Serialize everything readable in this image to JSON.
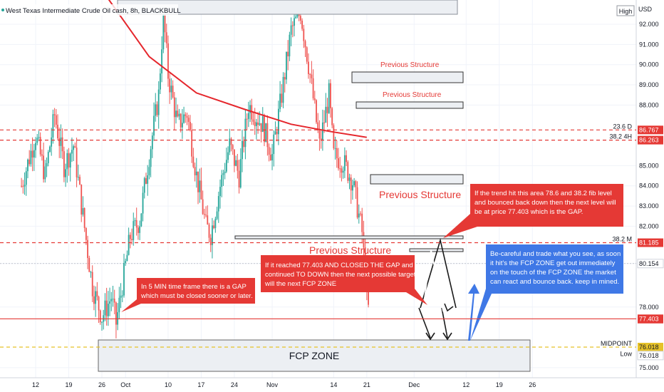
{
  "header": {
    "title": "West Texas Intermediate Crude Oil cash, 8h, BLACKBULL",
    "high_badge": "High",
    "currency": "USD"
  },
  "colors": {
    "bull": "#26a69a",
    "bear": "#ef5350",
    "ma": "#e5262c",
    "red_box": "#e53935",
    "blue_box": "#3f78e6",
    "grid": "#f0f3fa",
    "axis_text": "#131722",
    "midpoint": "#e6c229"
  },
  "chart_data": {
    "type": "candlestick",
    "y_axis": {
      "range": [
        74.5,
        93.2
      ],
      "ticks": [
        75.0,
        78.0,
        80.154,
        82.0,
        83.0,
        84.0,
        85.0,
        88.0,
        89.0,
        90.0,
        91.0,
        92.0
      ],
      "tick_labels": [
        "75.000",
        "78.000",
        "80.154",
        "82.000",
        "83.000",
        "84.000",
        "85.000",
        "88.000",
        "89.000",
        "90.000",
        "91.000",
        "92.000"
      ]
    },
    "x_axis": {
      "ticks": [
        {
          "label": "12",
          "day": -14
        },
        {
          "label": "19",
          "day": -7
        },
        {
          "label": "26",
          "day": 0
        },
        {
          "label": "Oct",
          "day": 5
        },
        {
          "label": "10",
          "day": 14
        },
        {
          "label": "17",
          "day": 21
        },
        {
          "label": "24",
          "day": 28
        },
        {
          "label": "Nov",
          "day": 36
        },
        {
          "label": "14",
          "day": 49
        },
        {
          "label": "21",
          "day": 56
        },
        {
          "label": "Dec",
          "day": 66
        },
        {
          "label": "12",
          "day": 77
        },
        {
          "label": "19",
          "day": 84
        },
        {
          "label": "26",
          "day": 91
        }
      ]
    },
    "price_path": [
      {
        "day": -17,
        "price": 84.0
      },
      {
        "day": -14,
        "price": 86.5
      },
      {
        "day": -12,
        "price": 84.5
      },
      {
        "day": -10,
        "price": 87.5
      },
      {
        "day": -8,
        "price": 85.0
      },
      {
        "day": -6,
        "price": 86.0
      },
      {
        "day": -4,
        "price": 82.5
      },
      {
        "day": -2,
        "price": 79.0
      },
      {
        "day": 0,
        "price": 77.5
      },
      {
        "day": 2,
        "price": 78.5
      },
      {
        "day": 3,
        "price": 77.2
      },
      {
        "day": 6,
        "price": 81.5
      },
      {
        "day": 8,
        "price": 82.3
      },
      {
        "day": 10,
        "price": 85.5
      },
      {
        "day": 12,
        "price": 88.5
      },
      {
        "day": 13,
        "price": 92.5
      },
      {
        "day": 14,
        "price": 89.5
      },
      {
        "day": 16,
        "price": 87.0
      },
      {
        "day": 18,
        "price": 87.6
      },
      {
        "day": 20,
        "price": 84.5
      },
      {
        "day": 22,
        "price": 82.0
      },
      {
        "day": 23,
        "price": 81.6
      },
      {
        "day": 25,
        "price": 84.0
      },
      {
        "day": 27,
        "price": 86.0
      },
      {
        "day": 29,
        "price": 84.5
      },
      {
        "day": 31,
        "price": 88.0
      },
      {
        "day": 34,
        "price": 87.0
      },
      {
        "day": 36,
        "price": 85.5
      },
      {
        "day": 38,
        "price": 88.5
      },
      {
        "day": 40,
        "price": 91.7
      },
      {
        "day": 42,
        "price": 92.6
      },
      {
        "day": 44,
        "price": 89.5
      },
      {
        "day": 46,
        "price": 86.0
      },
      {
        "day": 48,
        "price": 88.5
      },
      {
        "day": 49,
        "price": 85.5
      },
      {
        "day": 51,
        "price": 85.2
      },
      {
        "day": 53,
        "price": 84.2
      },
      {
        "day": 55,
        "price": 81.7
      },
      {
        "day": 56,
        "price": 78.5
      },
      {
        "day": 56.5,
        "price": 77.6
      }
    ],
    "ma_path": [
      {
        "day": -10,
        "price": 98.0
      },
      {
        "day": 0,
        "price": 93.7
      },
      {
        "day": 10,
        "price": 90.4
      },
      {
        "day": 20,
        "price": 88.6
      },
      {
        "day": 30,
        "price": 87.8
      },
      {
        "day": 40,
        "price": 87.05
      },
      {
        "day": 48,
        "price": 86.7
      },
      {
        "day": 56,
        "price": 86.4
      }
    ],
    "levels": [
      {
        "label": "23.6 D",
        "price": 86.767,
        "badge": "86.767",
        "style": "dashed",
        "color": "#e53935"
      },
      {
        "label": "38.2 4H",
        "price": 86.263,
        "badge": "86.263",
        "style": "dashed",
        "color": "#e53935"
      },
      {
        "label": "38.2 M",
        "price": 81.185,
        "badge": "81.185",
        "style": "dashed",
        "color": "#e53935"
      },
      {
        "label": "",
        "price": 77.418,
        "badge": "77.418",
        "style": "solid",
        "color": "#e53935"
      },
      {
        "label": "",
        "price": 77.403,
        "badge": "77.403",
        "style": "none",
        "color": "#e53935"
      },
      {
        "label": "MIDPOINT",
        "price": 76.018,
        "badge": "76.018",
        "style": "dashed",
        "color": "#e6c229"
      },
      {
        "label": "Low",
        "price": 75.5,
        "badge": "76.018",
        "style": "none",
        "color": "#ffffff"
      }
    ]
  },
  "annotations": {
    "previous_structure": [
      "Previous Structure",
      "Previous Structure",
      "Previous Structure",
      "Previous Structure"
    ],
    "fcp_zone": "FCP ZONE",
    "boxes": [
      {
        "lines": [
          "If the trend hit this area 78.6 and 38.2 fib level",
          "and bounced back down then the next level will",
          "be at price 77.403 which is the GAP."
        ]
      },
      {
        "lines": [
          "If it reached 77.403 AND CLOSED THE GAP and",
          "continued TO DOWN then the next possible target",
          "will the next FCP ZONE"
        ]
      },
      {
        "lines": [
          "In 5 MIN time frame there is a GAP",
          "which must be closed sooner or later."
        ]
      },
      {
        "lines": [
          "Be-careful and trade what you see, as soon",
          "it hit's the FCP ZONE get out immediately",
          "on the touch of the FCP ZONE the market",
          "can react and bounce back. keep in mined."
        ]
      }
    ]
  }
}
